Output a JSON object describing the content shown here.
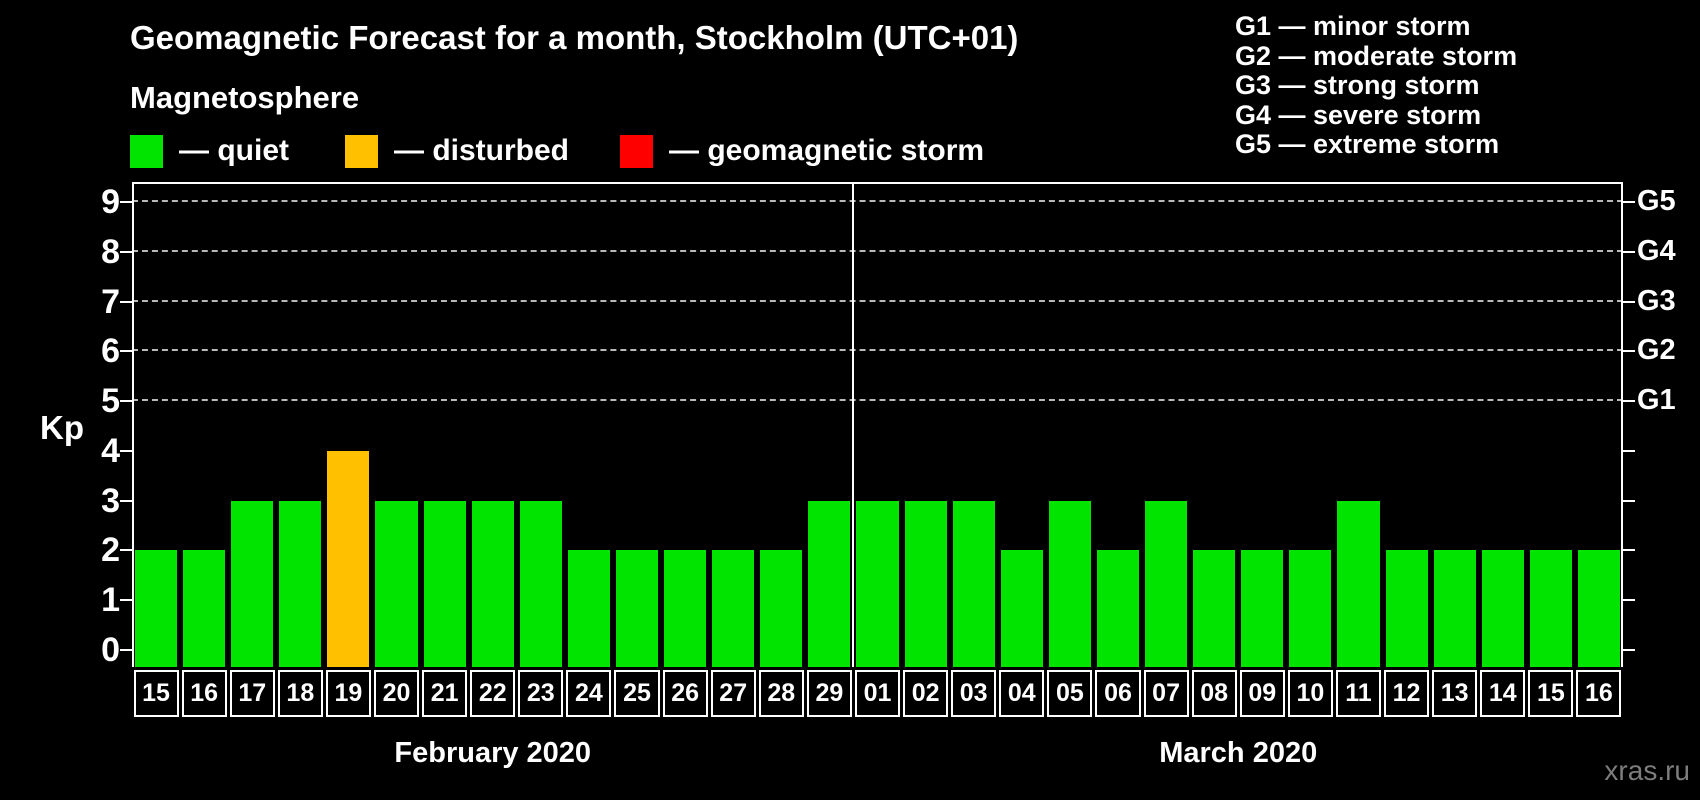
{
  "title": "Geomagnetic Forecast for a month, Stockholm (UTC+01)",
  "subtitle": "Magnetosphere",
  "colors": {
    "quiet": "#00e400",
    "disturbed": "#ffc000",
    "storm": "#ff0000",
    "axis": "#ffffff",
    "grid": "#b9b9b9",
    "background": "#000000",
    "watermark_text": "#7d7d7d"
  },
  "legend": {
    "items": [
      {
        "label": "— quiet",
        "state": "quiet"
      },
      {
        "label": "— disturbed",
        "state": "disturbed"
      },
      {
        "label": "— geomagnetic storm",
        "state": "storm"
      }
    ]
  },
  "g_legend": {
    "lines": [
      "G1 — minor storm",
      "G2 — moderate storm",
      "G3 — strong storm",
      "G4 — severe storm",
      "G5 — extreme storm"
    ]
  },
  "watermark": "xras.ru",
  "chart_data": {
    "type": "bar",
    "title": "Geomagnetic Forecast for a month, Stockholm (UTC+01)",
    "ylabel": "Kp",
    "ylim": [
      0,
      9
    ],
    "yticks": [
      0,
      1,
      2,
      3,
      4,
      5,
      6,
      7,
      8,
      9
    ],
    "gridlines_at": [
      5,
      6,
      7,
      8,
      9
    ],
    "grid": "dashed horizontal at storm levels only",
    "legend_position": "top",
    "right_axis_labels": [
      {
        "kp": 5,
        "label": "G1"
      },
      {
        "kp": 6,
        "label": "G2"
      },
      {
        "kp": 7,
        "label": "G3"
      },
      {
        "kp": 8,
        "label": "G4"
      },
      {
        "kp": 9,
        "label": "G5"
      }
    ],
    "months": [
      {
        "label": "February 2020",
        "days": [
          {
            "date": "15",
            "kp": 2,
            "state": "quiet"
          },
          {
            "date": "16",
            "kp": 2,
            "state": "quiet"
          },
          {
            "date": "17",
            "kp": 3,
            "state": "quiet"
          },
          {
            "date": "18",
            "kp": 3,
            "state": "quiet"
          },
          {
            "date": "19",
            "kp": 4,
            "state": "disturbed"
          },
          {
            "date": "20",
            "kp": 3,
            "state": "quiet"
          },
          {
            "date": "21",
            "kp": 3,
            "state": "quiet"
          },
          {
            "date": "22",
            "kp": 3,
            "state": "quiet"
          },
          {
            "date": "23",
            "kp": 3,
            "state": "quiet"
          },
          {
            "date": "24",
            "kp": 2,
            "state": "quiet"
          },
          {
            "date": "25",
            "kp": 2,
            "state": "quiet"
          },
          {
            "date": "26",
            "kp": 2,
            "state": "quiet"
          },
          {
            "date": "27",
            "kp": 2,
            "state": "quiet"
          },
          {
            "date": "28",
            "kp": 2,
            "state": "quiet"
          },
          {
            "date": "29",
            "kp": 3,
            "state": "quiet"
          }
        ]
      },
      {
        "label": "March 2020",
        "days": [
          {
            "date": "01",
            "kp": 3,
            "state": "quiet"
          },
          {
            "date": "02",
            "kp": 3,
            "state": "quiet"
          },
          {
            "date": "03",
            "kp": 3,
            "state": "quiet"
          },
          {
            "date": "04",
            "kp": 2,
            "state": "quiet"
          },
          {
            "date": "05",
            "kp": 3,
            "state": "quiet"
          },
          {
            "date": "06",
            "kp": 2,
            "state": "quiet"
          },
          {
            "date": "07",
            "kp": 3,
            "state": "quiet"
          },
          {
            "date": "08",
            "kp": 2,
            "state": "quiet"
          },
          {
            "date": "09",
            "kp": 2,
            "state": "quiet"
          },
          {
            "date": "10",
            "kp": 2,
            "state": "quiet"
          },
          {
            "date": "11",
            "kp": 3,
            "state": "quiet"
          },
          {
            "date": "12",
            "kp": 2,
            "state": "quiet"
          },
          {
            "date": "13",
            "kp": 2,
            "state": "quiet"
          },
          {
            "date": "14",
            "kp": 2,
            "state": "quiet"
          },
          {
            "date": "15",
            "kp": 2,
            "state": "quiet"
          },
          {
            "date": "16",
            "kp": 2,
            "state": "quiet"
          }
        ]
      }
    ]
  }
}
